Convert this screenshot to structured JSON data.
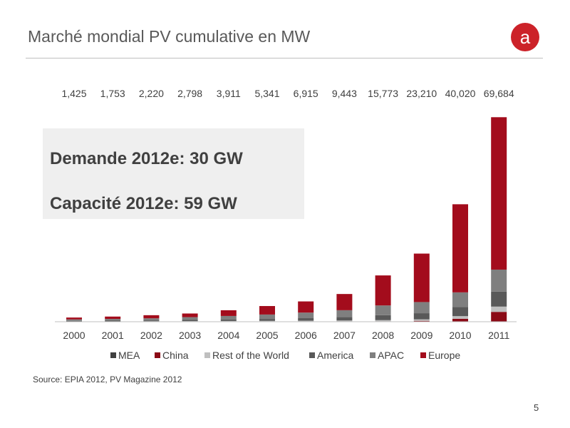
{
  "slide": {
    "title": "Marché mondial PV cumulative en MW",
    "source": "Source: EPIA 2012, PV Magazine 2012",
    "page_number": "5",
    "logo_letter": "a",
    "callout_line1": "Demande 2012e: 30 GW",
    "callout_line2": "Capacité 2012e: 59 GW"
  },
  "colors": {
    "accent": "#cc2229",
    "MEA": "#404040",
    "China": "#8b0a16",
    "Rest of the World": "#bfbfbf",
    "America": "#595959",
    "APAC": "#7f7f7f",
    "Europe": "#a30c1c"
  },
  "chart_data": {
    "type": "bar",
    "stacked": true,
    "categories": [
      "2000",
      "2001",
      "2002",
      "2003",
      "2004",
      "2005",
      "2006",
      "2007",
      "2008",
      "2009",
      "2010",
      "2011"
    ],
    "totals": [
      1425,
      1753,
      2220,
      2798,
      3911,
      5341,
      6915,
      9443,
      15773,
      23210,
      40020,
      69684
    ],
    "total_labels": [
      "1,425",
      "1,753",
      "2,220",
      "2,798",
      "3,911",
      "5,341",
      "6,915",
      "9,443",
      "15,773",
      "23,210",
      "40,020",
      "69,684"
    ],
    "legend": [
      "MEA",
      "China",
      "Rest of the World",
      "America",
      "APAC",
      "Europe"
    ],
    "legend_position": "bottom",
    "series": [
      {
        "name": "MEA",
        "values": [
          0,
          0,
          0,
          0,
          0,
          0,
          0,
          0,
          0,
          0,
          0,
          50
        ]
      },
      {
        "name": "China",
        "values": [
          20,
          25,
          40,
          55,
          60,
          70,
          80,
          100,
          140,
          300,
          1000,
          3300
        ]
      },
      {
        "name": "Rest of the World",
        "values": [
          80,
          90,
          120,
          150,
          200,
          230,
          280,
          320,
          400,
          500,
          900,
          1800
        ]
      },
      {
        "name": "America",
        "values": [
          200,
          250,
          300,
          400,
          550,
          650,
          850,
          1200,
          1700,
          2100,
          3100,
          5100
        ]
      },
      {
        "name": "APAC",
        "values": [
          500,
          600,
          700,
          950,
          1150,
          1500,
          1900,
          2300,
          3300,
          3800,
          5000,
          7500
        ]
      },
      {
        "name": "Europe",
        "values": [
          625,
          788,
          1060,
          1243,
          1951,
          2891,
          3805,
          5523,
          10233,
          16510,
          30020,
          51934
        ]
      }
    ],
    "ylim": [
      0,
      70000
    ],
    "grid": false
  }
}
